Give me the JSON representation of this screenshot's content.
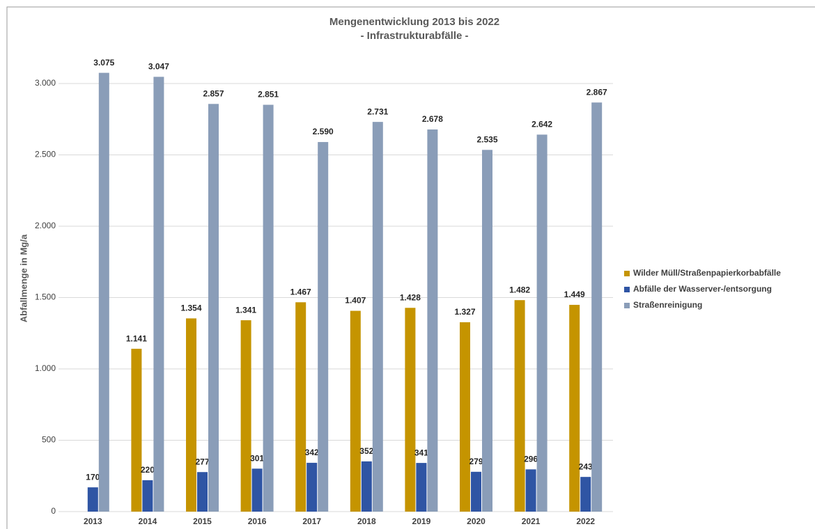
{
  "chart_data": {
    "type": "bar",
    "title": "Mengenentwicklung 2013 bis 2022",
    "subtitle": "- Infrastrukturabfälle -",
    "y_label": "Abfallmenge in Mg/a",
    "categories": [
      "2013",
      "2014",
      "2015",
      "2016",
      "2017",
      "2018",
      "2019",
      "2020",
      "2021",
      "2022"
    ],
    "series": [
      {
        "name": "Wilder Müll/Straßenpapierkorbabfälle",
        "color": "#c59400",
        "values": [
          null,
          1141,
          1354,
          1341,
          1467,
          1407,
          1428,
          1327,
          1482,
          1449
        ],
        "value_labels": [
          null,
          "1.141",
          "1.354",
          "1.341",
          "1.467",
          "1.407",
          "1.428",
          "1.327",
          "1.482",
          "1.449"
        ]
      },
      {
        "name": "Abfälle der Wasserver-/entsorgung",
        "color": "#2f55a4",
        "values": [
          170,
          220,
          277,
          301,
          342,
          352,
          341,
          279,
          296,
          243
        ],
        "value_labels": [
          "170",
          "220",
          "277",
          "301",
          "342",
          "352",
          "341",
          "279",
          "296",
          "243"
        ]
      },
      {
        "name": "Straßenreinigung",
        "color": "#8a9db8",
        "values": [
          3075,
          3047,
          2857,
          2851,
          2590,
          2731,
          2678,
          2535,
          2642,
          2867
        ],
        "value_labels": [
          "3.075",
          "3.047",
          "2.857",
          "2.851",
          "2.590",
          "2.731",
          "2.678",
          "2.535",
          "2.642",
          "2.867"
        ]
      }
    ],
    "ylim": [
      0,
      3200
    ],
    "yticks": [
      0,
      500,
      {
        "value": 1000,
        "label": "1.000"
      },
      {
        "value": 1500,
        "label": "1.500"
      },
      {
        "value": 2000,
        "label": "2.000"
      },
      {
        "value": 2500,
        "label": "2.500"
      },
      {
        "value": 3000,
        "label": "3.000"
      }
    ],
    "grid": true,
    "legend": "right"
  }
}
